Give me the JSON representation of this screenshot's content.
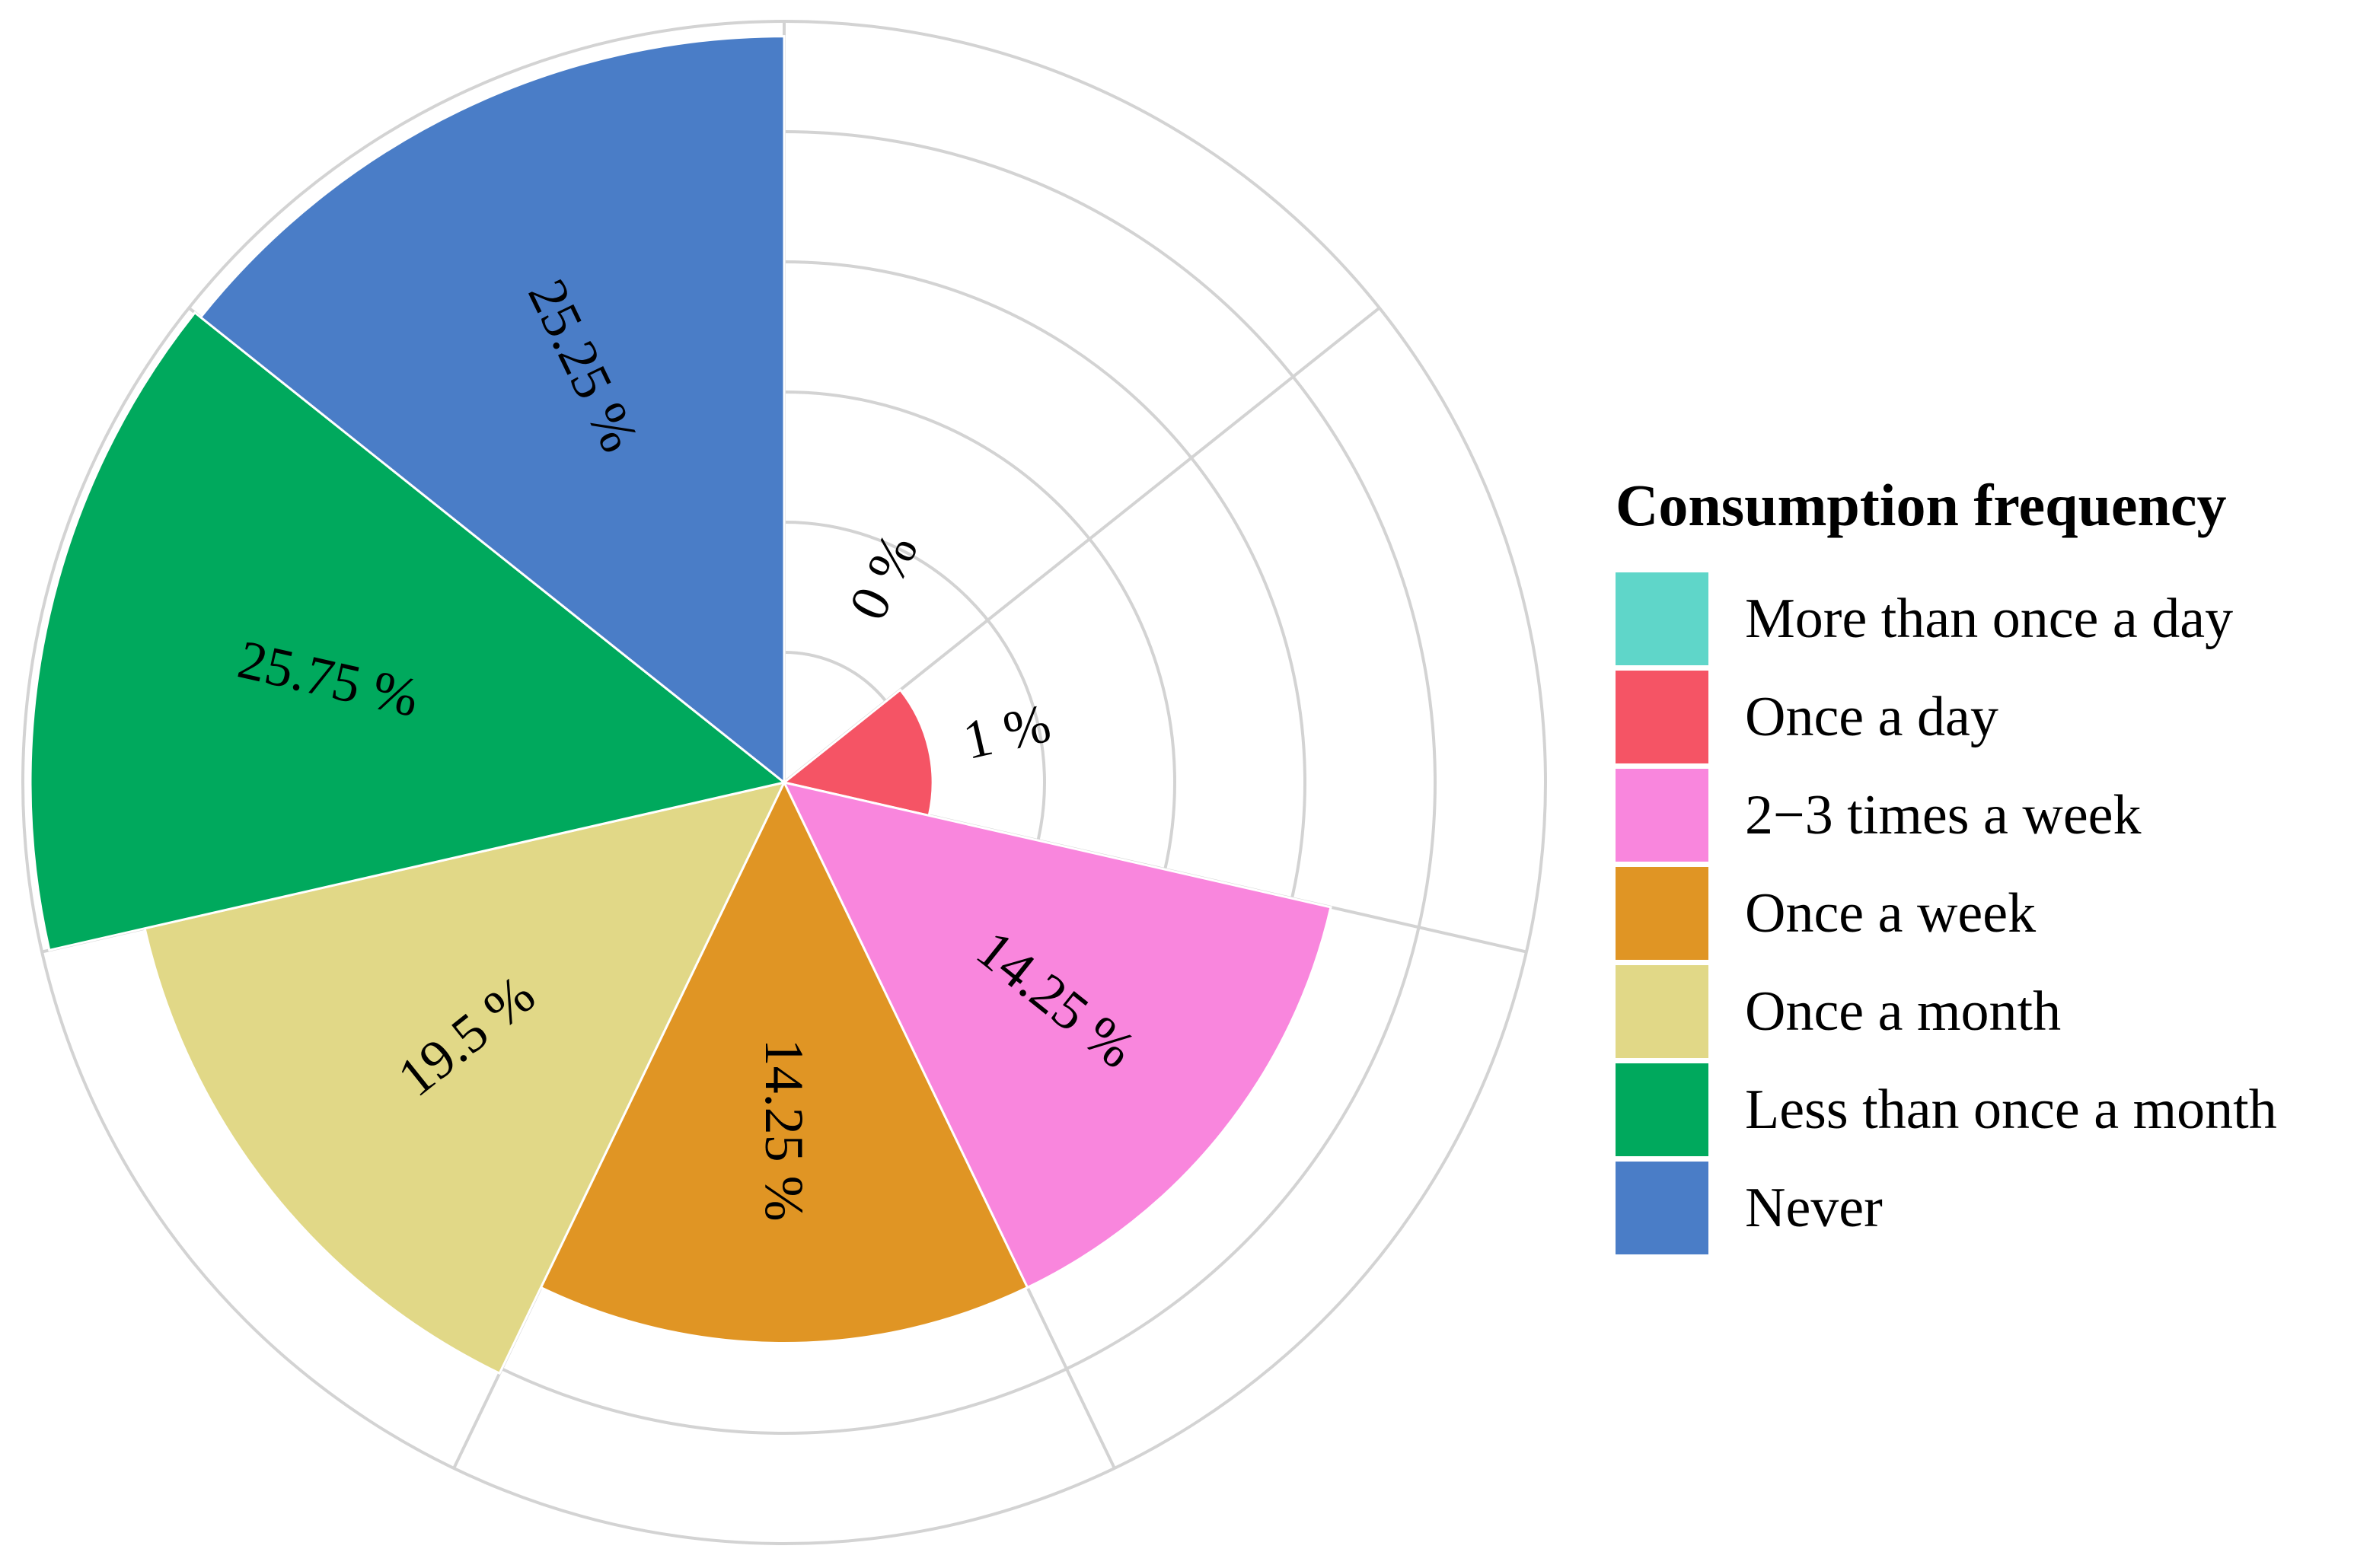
{
  "chart_data": {
    "type": "polar-area",
    "title": "",
    "legend_title": "Consumption frequency",
    "legend_position": "right",
    "unit_suffix": " %",
    "radial_max": 25.75,
    "grid": true,
    "grid_rings": 6,
    "spokes": 7,
    "categories": [
      "More than once a day",
      "Once a day",
      "2−3 times a week",
      "Once a week",
      "Once a month",
      "Less than once a month",
      "Never"
    ],
    "values": [
      0,
      1,
      14.25,
      14.25,
      19.5,
      25.75,
      25.25
    ],
    "labels": [
      "0 %",
      "1 %",
      "14.25 %",
      "14.25 %",
      "19.5 %",
      "25.75 %",
      "25.25 %"
    ],
    "colors": [
      "#5fd6c9",
      "#f55465",
      "#f986dd",
      "#e09524",
      "#e1d887",
      "#00a95d",
      "#4a7dc7"
    ]
  }
}
